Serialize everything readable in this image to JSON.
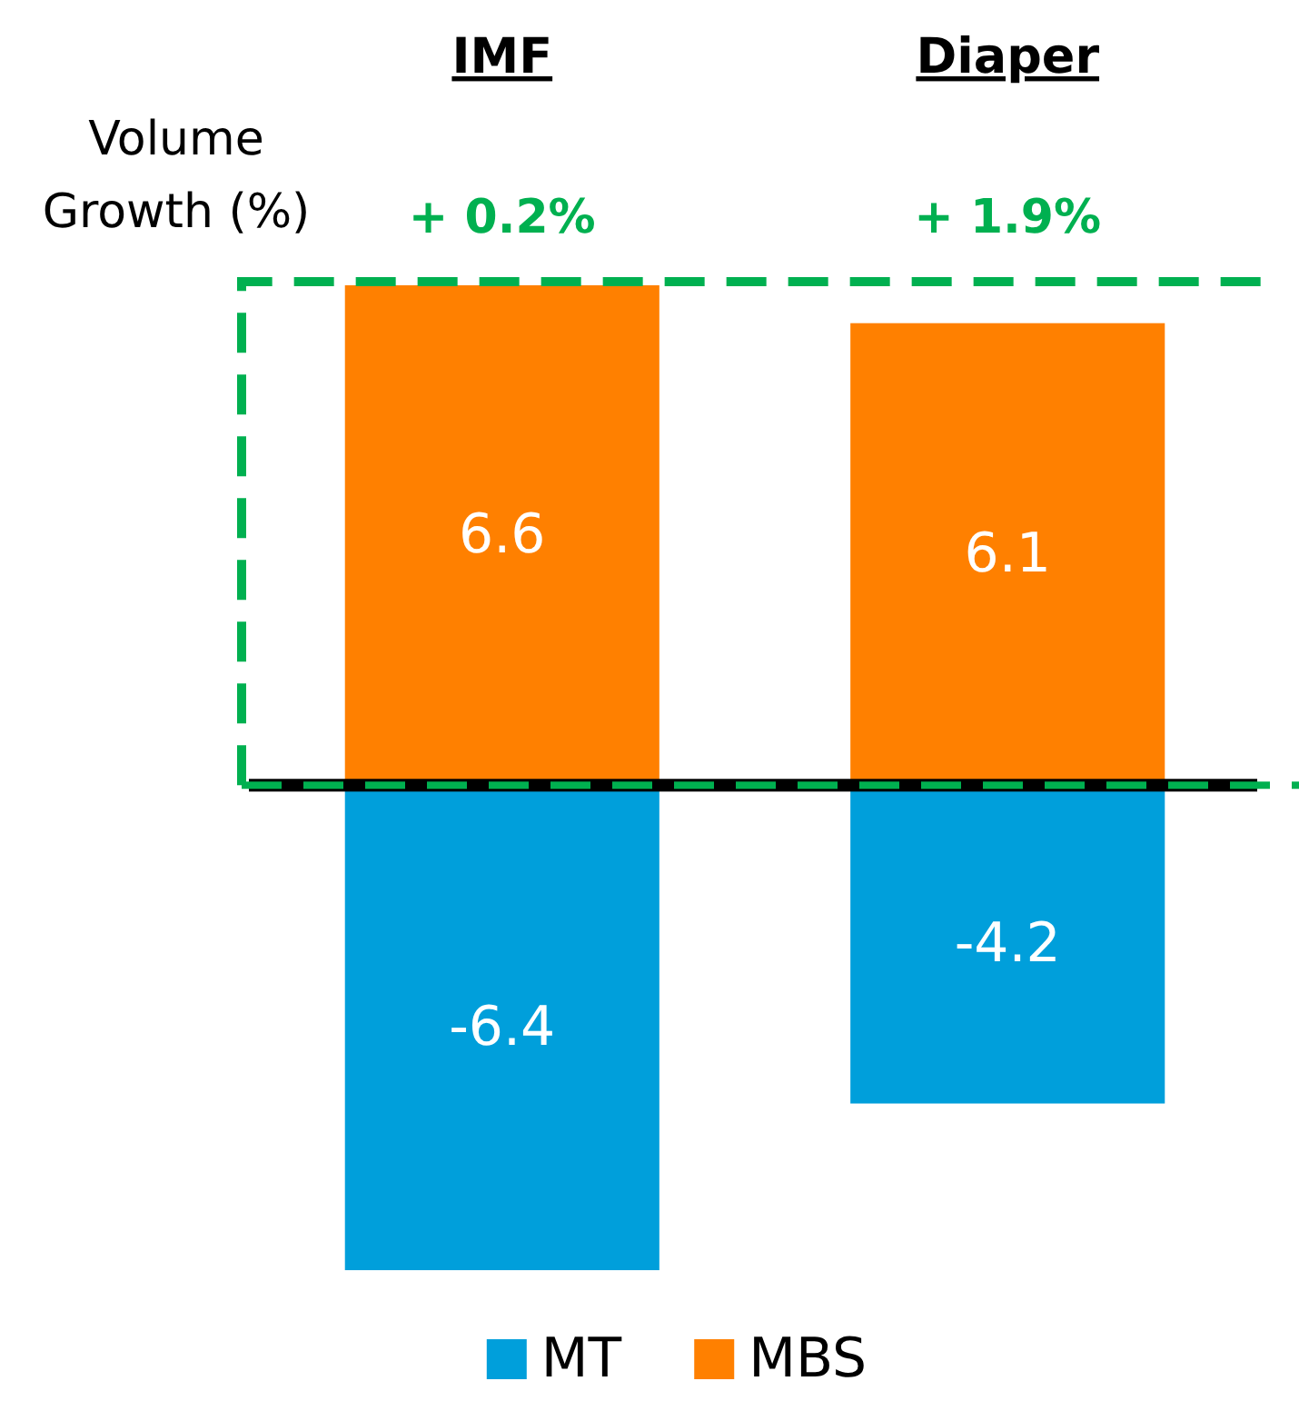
{
  "chart_data": {
    "type": "bar",
    "ylabel": "Volume Growth (%)",
    "categories": [
      "IMF",
      "Diaper"
    ],
    "stacked": true,
    "data_labels": true,
    "ref_lines": [
      {
        "axis": "y",
        "value": 0,
        "color": "#00b050",
        "line_style": "dashed"
      }
    ],
    "totals": [
      "+ 0.2%",
      "+ 1.9%"
    ],
    "legend": "bottom",
    "series": [
      {
        "name": "MT",
        "color": "#009fdb",
        "values": [
          -6.4,
          -4.2
        ]
      },
      {
        "name": "MBS",
        "color": "#ff8000",
        "values": [
          6.6,
          6.1
        ]
      }
    ]
  }
}
